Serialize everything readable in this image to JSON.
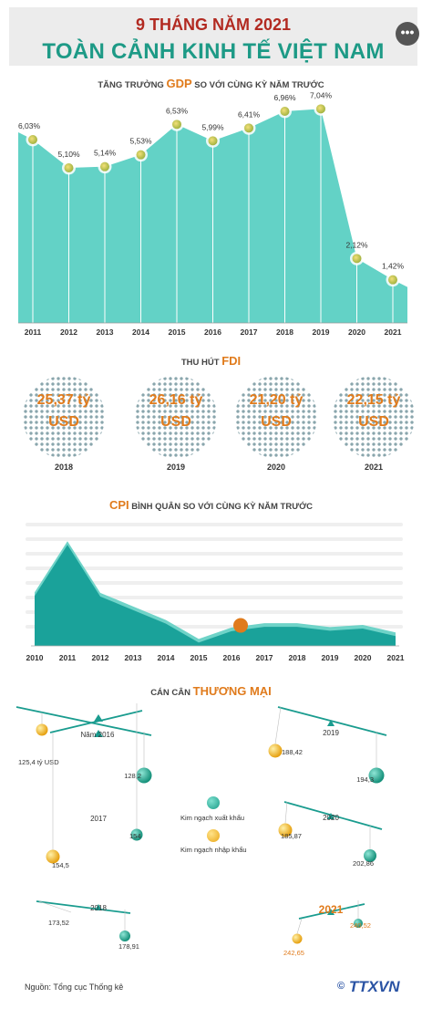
{
  "header": {
    "title_line1": "9 THÁNG NĂM 2021",
    "title_line2": "TOÀN CẢNH KINH TẾ VIỆT NAM",
    "menu_icon": "more-dots-icon"
  },
  "gdp": {
    "title_pre": "TĂNG TRƯỞNG",
    "title_hl": "GDP",
    "title_post": "SO VỚI CÙNG KỲ NĂM TRƯỚC"
  },
  "fdi": {
    "title_pre": "THU HÚT",
    "title_hl": "FDI",
    "items": [
      {
        "value": "25,37 tỷ",
        "unit": "USD",
        "year": "2018"
      },
      {
        "value": "26,16 tỷ",
        "unit": "USD",
        "year": "2019"
      },
      {
        "value": "21,20 tỷ",
        "unit": "USD",
        "year": "2020"
      },
      {
        "value": "22,15 tỷ",
        "unit": "USD",
        "year": "2021"
      }
    ]
  },
  "cpi": {
    "title_hl": "CPI",
    "title_post": "BÌNH QUÂN SO VỚI CÙNG KỲ NĂM TRƯỚC"
  },
  "trade": {
    "title_pre": "CÁN CÂN",
    "title_hl": "THƯƠNG MẠI",
    "legend_export": "Kim ngạch xuất khẩu",
    "legend_import": "Kim ngạch nhập khẩu",
    "colors": {
      "export": "#1fa88e",
      "import": "#f2b71f",
      "beam": "#1a9c8f"
    },
    "balances": [
      {
        "year": "Năm 2016",
        "export_label": "128,2",
        "import_label": "125,4 tỷ USD"
      },
      {
        "year": "2017",
        "export_label": "154",
        "import_label": "154,5"
      },
      {
        "year": "2018",
        "export_label": "178,91",
        "import_label": "173,52"
      },
      {
        "year": "2019",
        "export_label": "194,3",
        "import_label": "188,42"
      },
      {
        "year": "2020",
        "export_label": "202,86",
        "import_label": "185,87"
      },
      {
        "year": "2021",
        "export_label": "240,52",
        "import_label": "242,65"
      }
    ]
  },
  "footer": {
    "source": "Nguồn: Tổng cục Thống kê",
    "logo_mark": "©",
    "logo_text": "TTXVN"
  },
  "colors": {
    "gdp_area": "#63d2c6",
    "cpi_dark": "#1aa29a",
    "accent": "#e07b1c",
    "title_red": "#b22a21",
    "title_green": "#1d9a86"
  },
  "chart_data": [
    {
      "type": "area",
      "title": "TĂNG TRƯỞNG GDP SO VỚI CÙNG KỲ NĂM TRƯỚC",
      "categories": [
        "2011",
        "2012",
        "2013",
        "2014",
        "2015",
        "2016",
        "2017",
        "2018",
        "2019",
        "2020",
        "2021"
      ],
      "values": [
        6.03,
        5.1,
        5.14,
        5.53,
        6.53,
        5.99,
        6.41,
        6.96,
        7.04,
        2.12,
        1.42
      ],
      "labels": [
        "6,03%",
        "5,10%",
        "5,14%",
        "5,53%",
        "6,53%",
        "5,99%",
        "6,41%",
        "6,96%",
        "7,04%",
        "2,12%",
        "1,42%"
      ],
      "ylim": [
        0,
        7.5
      ]
    },
    {
      "type": "bar",
      "title": "THU HÚT FDI",
      "categories": [
        "2018",
        "2019",
        "2020",
        "2021"
      ],
      "values": [
        25.37,
        26.16,
        21.2,
        22.15
      ]
    },
    {
      "type": "area",
      "title": "CPI BÌNH QUÂN SO VỚI CÙNG KỲ NĂM TRƯỚC",
      "categories": [
        "2010",
        "2011",
        "2012",
        "2013",
        "2014",
        "2015",
        "2016",
        "2017",
        "2018",
        "2019",
        "2020",
        "2021"
      ],
      "values": [
        9.2,
        18.6,
        9.1,
        6.6,
        4.1,
        0.6,
        2.7,
        3.5,
        3.5,
        2.8,
        3.2,
        1.8
      ],
      "highlight_index": 6,
      "ylim": [
        0,
        21
      ]
    },
    {
      "type": "table",
      "title": "CÁN CÂN THƯƠNG MẠI",
      "columns": [
        "year",
        "export",
        "import"
      ],
      "rows": [
        [
          "2016",
          128.2,
          125.4
        ],
        [
          "2017",
          154,
          154.5
        ],
        [
          "2018",
          178.91,
          173.52
        ],
        [
          "2019",
          194.3,
          188.42
        ],
        [
          "2020",
          202.86,
          185.87
        ],
        [
          "2021",
          240.52,
          242.65
        ]
      ]
    }
  ]
}
